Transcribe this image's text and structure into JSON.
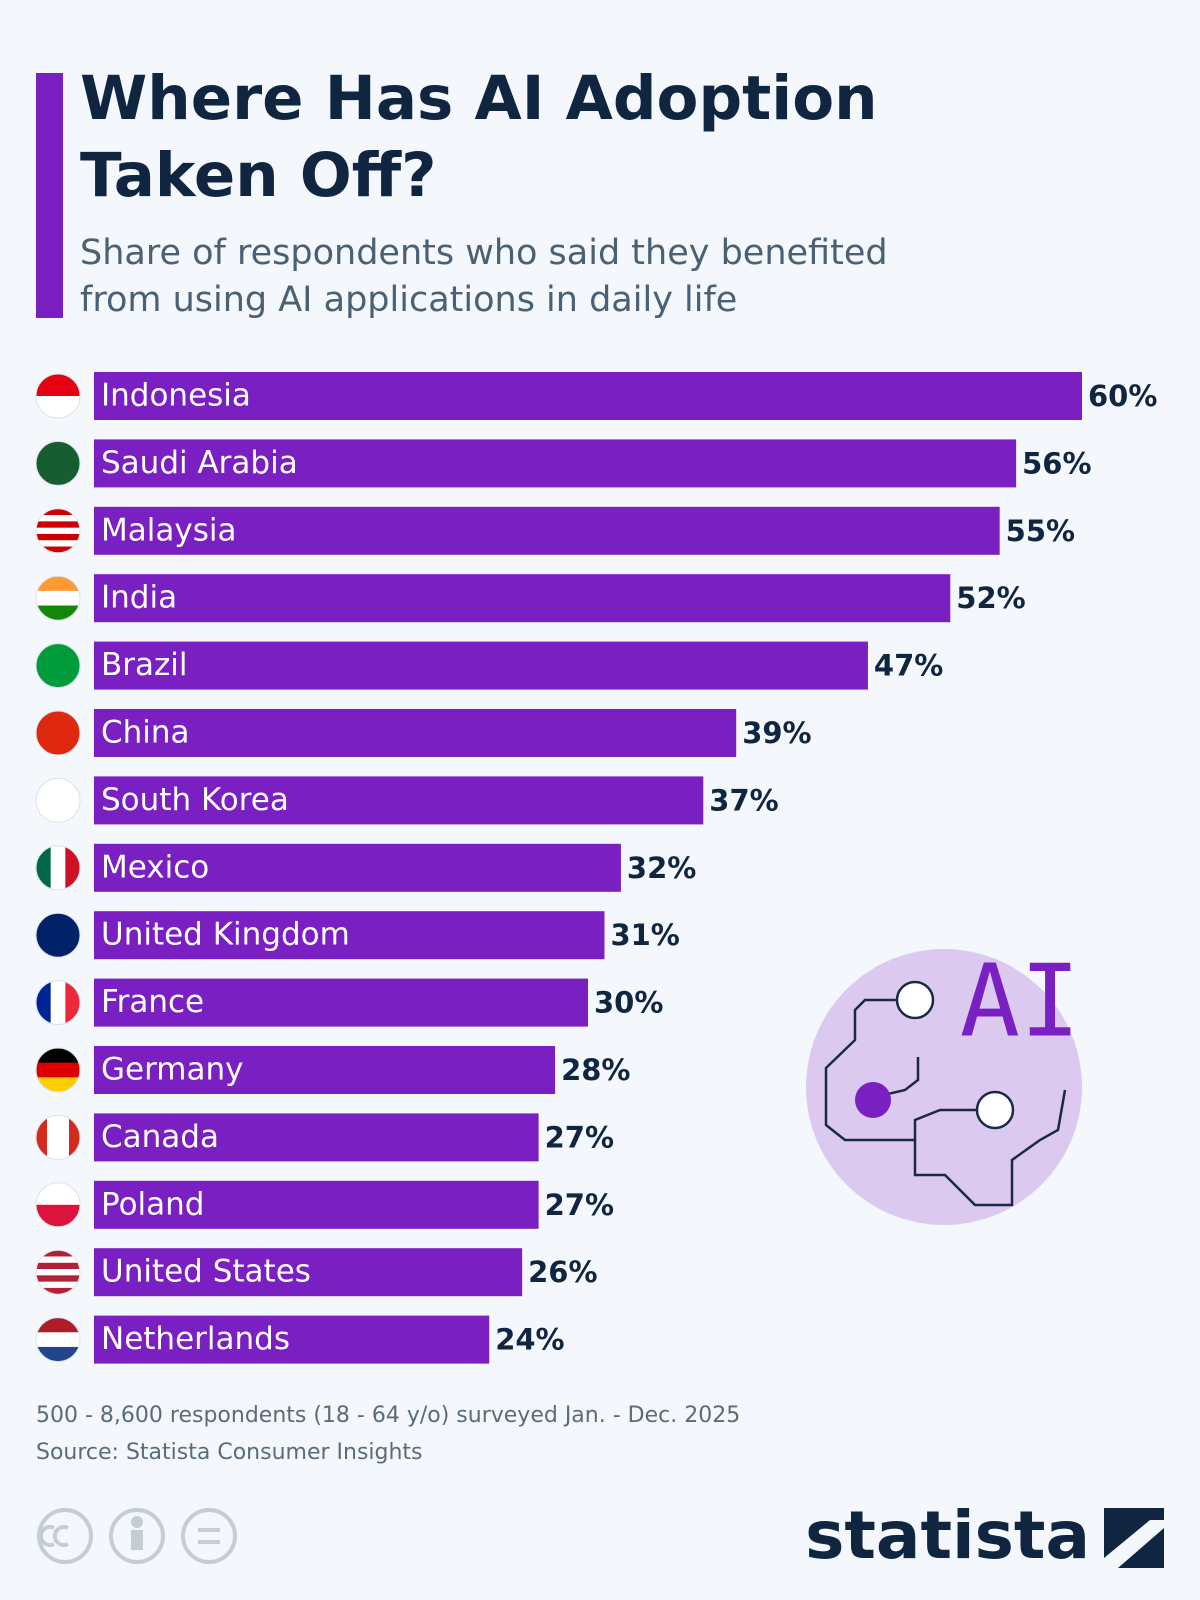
{
  "chart_data": {
    "type": "bar",
    "orientation": "horizontal",
    "title": "Where Has AI Adoption Taken Off?",
    "subtitle": "Share of respondents who said they benefited from using AI applications in daily life",
    "categories": [
      "Indonesia",
      "Saudi Arabia",
      "Malaysia",
      "India",
      "Brazil",
      "China",
      "South Korea",
      "Mexico",
      "United Kingdom",
      "France",
      "Germany",
      "Canada",
      "Poland",
      "United States",
      "Netherlands"
    ],
    "values": [
      60,
      56,
      55,
      52,
      47,
      39,
      37,
      32,
      31,
      30,
      28,
      27,
      27,
      26,
      24
    ],
    "value_labels": [
      "60%",
      "56%",
      "55%",
      "52%",
      "47%",
      "39%",
      "37%",
      "32%",
      "31%",
      "30%",
      "28%",
      "27%",
      "27%",
      "26%",
      "24%"
    ],
    "color": "#7a1fc2",
    "note": "500 - 8,600 respondents (18 - 64 y/o) surveyed Jan. - Dec. 2025",
    "source": "Source: Statista Consumer Insights",
    "illustration_label": "AI",
    "logo": "statista"
  }
}
